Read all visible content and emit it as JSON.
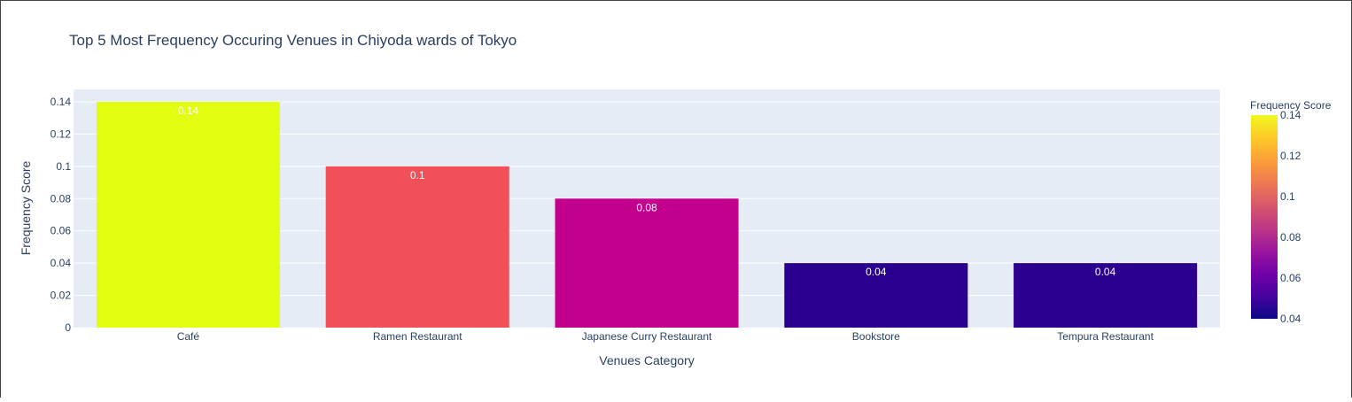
{
  "chart_data": {
    "type": "bar",
    "title": "Top 5 Most Frequency Occuring Venues in Chiyoda wards of Tokyo",
    "xlabel": "Venues Category",
    "ylabel": "Frequency Score",
    "categories": [
      "Café",
      "Ramen Restaurant",
      "Japanese Curry Restaurant",
      "Bookstore",
      "Tempura Restaurant"
    ],
    "values": [
      0.14,
      0.1,
      0.08,
      0.04,
      0.04
    ],
    "data_labels": [
      "0.14",
      "0.1",
      "0.08",
      "0.04",
      "0.04"
    ],
    "bar_colors": [
      "#e2ff12",
      "#f25059",
      "#c3008e",
      "#2c008e",
      "#2c008e"
    ],
    "ylim": [
      0,
      0.14
    ],
    "yticks": [
      0,
      0.02,
      0.04,
      0.06,
      0.08,
      0.1,
      0.12,
      0.14
    ],
    "ytick_labels": [
      "0",
      "0.02",
      "0.04",
      "0.06",
      "0.08",
      "0.1",
      "0.12",
      "0.14"
    ],
    "grid": true,
    "plot_background": "#e5ecf6",
    "colorbar": {
      "title": "Frequency Score",
      "range": [
        0.04,
        0.14
      ],
      "ticks": [
        0.04,
        0.06,
        0.08,
        0.1,
        0.12,
        0.14
      ],
      "tick_labels": [
        "0.04",
        "0.06",
        "0.08",
        "0.1",
        "0.12",
        "0.14"
      ],
      "colorscale": [
        "#0d0887",
        "#46039f",
        "#7201a8",
        "#9c179e",
        "#bd3786",
        "#d8576b",
        "#ed7953",
        "#fb9f3a",
        "#fdca26",
        "#f0f921"
      ]
    }
  }
}
